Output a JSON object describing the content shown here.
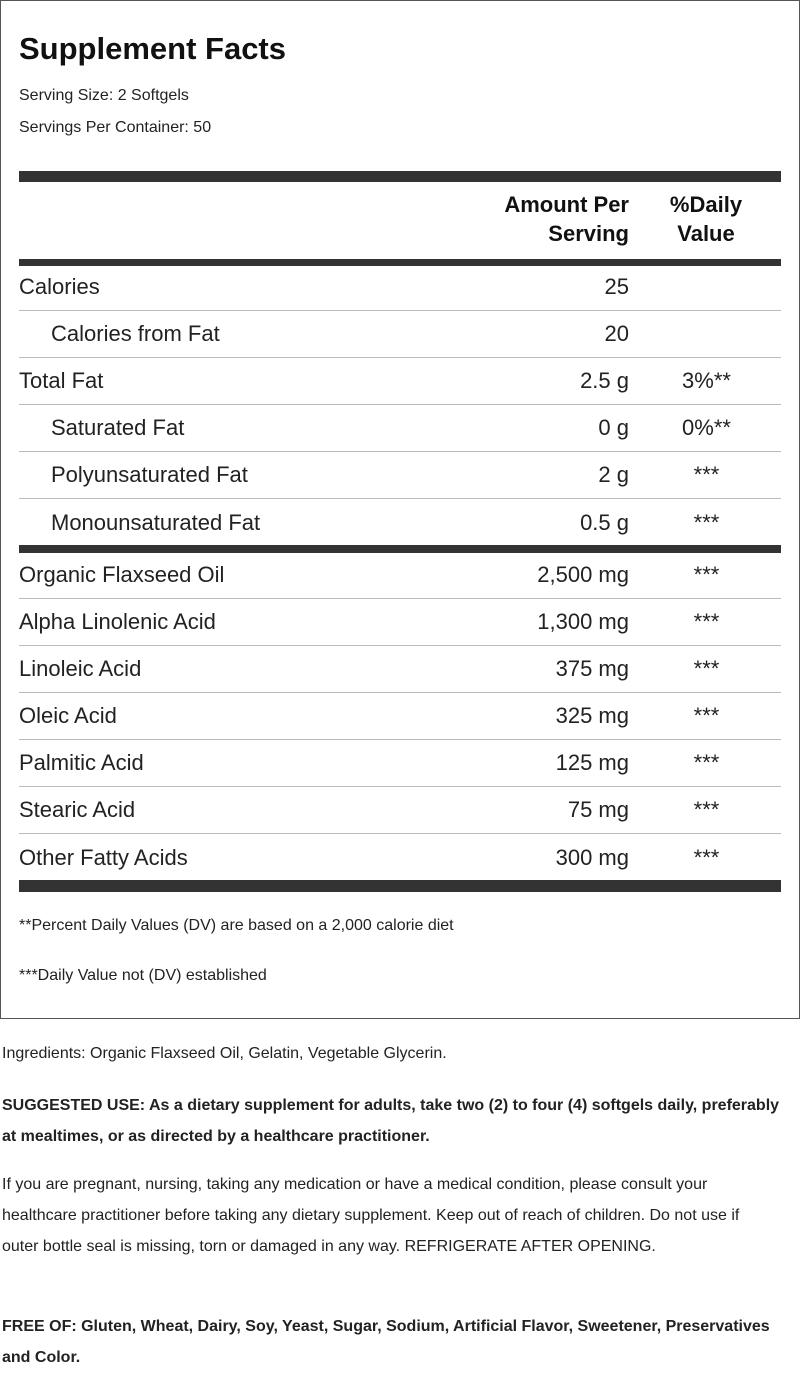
{
  "title": "Supplement Facts",
  "serving_size": "Serving Size: 2 Softgels",
  "servings_per_container": "Servings Per Container: 50",
  "header": {
    "amount_line1": "Amount Per",
    "amount_line2": "Serving",
    "dv_line1": "%Daily",
    "dv_line2": "Value"
  },
  "rows_a": [
    {
      "name": "Calories",
      "amount": "25",
      "dv": ""
    },
    {
      "name": "Calories from Fat",
      "amount": "20",
      "dv": "",
      "indent": true
    },
    {
      "name": "Total Fat",
      "amount": "2.5 g",
      "dv": "3%**"
    },
    {
      "name": "Saturated Fat",
      "amount": "0 g",
      "dv": "0%**",
      "indent": true
    },
    {
      "name": "Polyunsaturated Fat",
      "amount": "2 g",
      "dv": "***",
      "indent": true
    },
    {
      "name": "Monounsaturated Fat",
      "amount": "0.5 g",
      "dv": "***",
      "indent": true
    }
  ],
  "rows_b": [
    {
      "name": "Organic Flaxseed Oil",
      "amount": "2,500 mg",
      "dv": "***"
    },
    {
      "name": "Alpha Linolenic Acid",
      "amount": "1,300 mg",
      "dv": "***"
    },
    {
      "name": "Linoleic Acid",
      "amount": "375 mg",
      "dv": "***"
    },
    {
      "name": "Oleic Acid",
      "amount": "325 mg",
      "dv": "***"
    },
    {
      "name": "Palmitic Acid",
      "amount": "125 mg",
      "dv": "***"
    },
    {
      "name": "Stearic Acid",
      "amount": "75 mg",
      "dv": "***"
    },
    {
      "name": "Other Fatty Acids",
      "amount": "300 mg",
      "dv": "***"
    }
  ],
  "footnote1": "**Percent Daily Values (DV) are based on a 2,000 calorie diet",
  "footnote2": "***Daily Value not (DV) established",
  "ingredients": "Ingredients: Organic Flaxseed Oil, Gelatin, Vegetable Glycerin.",
  "suggested_use": "SUGGESTED USE: As a dietary supplement for adults, take two (2) to four (4) softgels daily, preferably at mealtimes, or as directed by a healthcare practitioner.",
  "warning": "If you are pregnant, nursing, taking any medication or have a medical condition, please consult your healthcare practitioner before taking any dietary supplement. Keep out of reach of children. Do not use if outer bottle seal is missing, torn or damaged in any way. REFRIGERATE AFTER OPENING.",
  "free_of": "FREE OF: Gluten, Wheat, Dairy, Soy, Yeast, Sugar, Sodium, Artificial Flavor, Sweetener, Preservatives and Color."
}
